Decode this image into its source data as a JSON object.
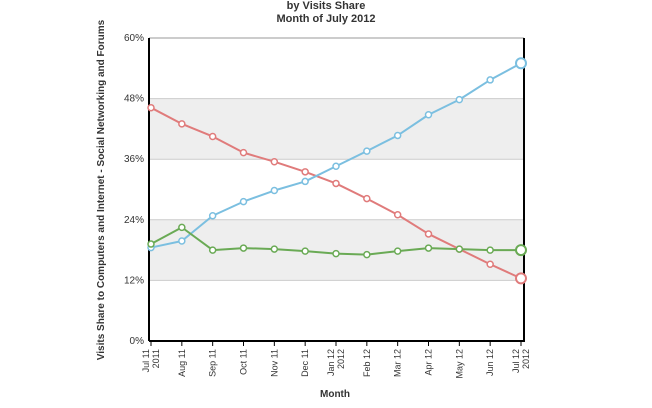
{
  "chart_data": {
    "type": "line",
    "title": "by Visits Share",
    "subtitle": "Month of July 2012",
    "xlabel": "Month",
    "ylabel": "Visits Share to Computers and Internet - Social Networking and Forums",
    "categories": [
      "Jul 11 2011",
      "Aug 11",
      "Sep 11",
      "Oct 11",
      "Nov 11",
      "Dec 11",
      "Jan 12 2012",
      "Feb 12",
      "Mar 12",
      "Apr 12",
      "May 12",
      "Jun 12",
      "Jul 12 2012"
    ],
    "x_tick_labels": [
      [
        "Jul 11",
        "2011"
      ],
      [
        "Aug 11"
      ],
      [
        "Sep 11"
      ],
      [
        "Oct 11"
      ],
      [
        "Nov 11"
      ],
      [
        "Dec 11"
      ],
      [
        "Jan 12",
        "2012"
      ],
      [
        "Feb 12"
      ],
      [
        "Mar 12"
      ],
      [
        "Apr 12"
      ],
      [
        "May 12"
      ],
      [
        "Jun 12"
      ],
      [
        "Jul 12",
        "2012"
      ]
    ],
    "y_ticks": [
      0,
      12,
      24,
      36,
      48,
      60
    ],
    "y_tick_labels": [
      "0%",
      "12%",
      "24%",
      "36%",
      "48%",
      "60%"
    ],
    "ylim": [
      0,
      60
    ],
    "grid": true,
    "legend": "none",
    "series": [
      {
        "color": "#e07b7b",
        "values": [
          46.2,
          43.0,
          40.5,
          37.3,
          35.5,
          33.5,
          31.2,
          28.2,
          25.0,
          21.2,
          18.2,
          15.2,
          12.4
        ]
      },
      {
        "color": "#7bbfe0",
        "values": [
          18.5,
          19.8,
          24.8,
          27.6,
          29.8,
          31.6,
          34.6,
          37.6,
          40.7,
          44.8,
          47.8,
          51.7,
          55.0
        ]
      },
      {
        "color": "#6aaa55",
        "values": [
          19.2,
          22.5,
          18.0,
          18.4,
          18.2,
          17.8,
          17.3,
          17.1,
          17.8,
          18.4,
          18.2,
          18.0,
          18.0
        ]
      }
    ]
  }
}
